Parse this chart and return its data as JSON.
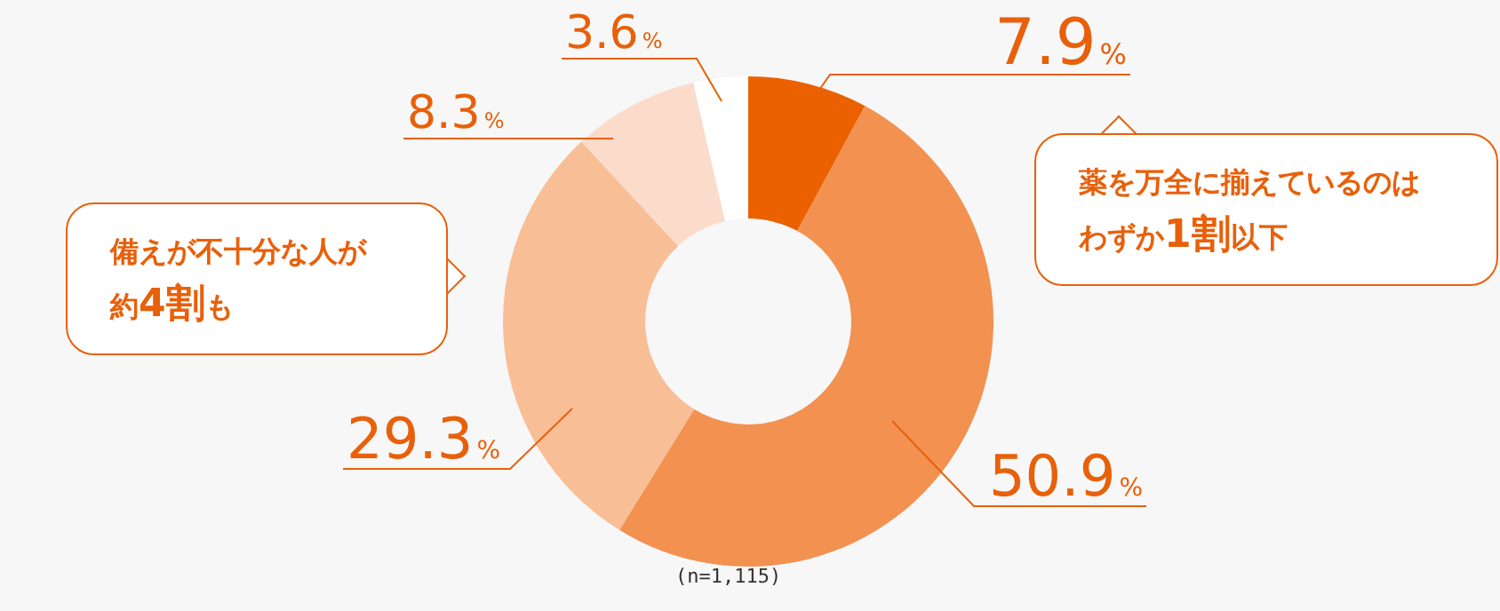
{
  "chart_data": {
    "type": "donut",
    "categories": [
      null,
      null,
      null,
      null,
      null
    ],
    "values": [
      7.9,
      50.9,
      29.3,
      8.3,
      3.6
    ],
    "colors": [
      "#eb6100",
      "#f29150",
      "#f8be96",
      "#fbdccb",
      "#ffffff"
    ],
    "value_labels": [
      "7.9%",
      "50.9%",
      "29.3%",
      "8.3%",
      "3.6%"
    ],
    "legend": false,
    "annotations": [
      "薬を万全に揃えているのはわずか1割以下",
      "備えが不十分な人が約4割も",
      "(n=1,115)"
    ]
  }
}
